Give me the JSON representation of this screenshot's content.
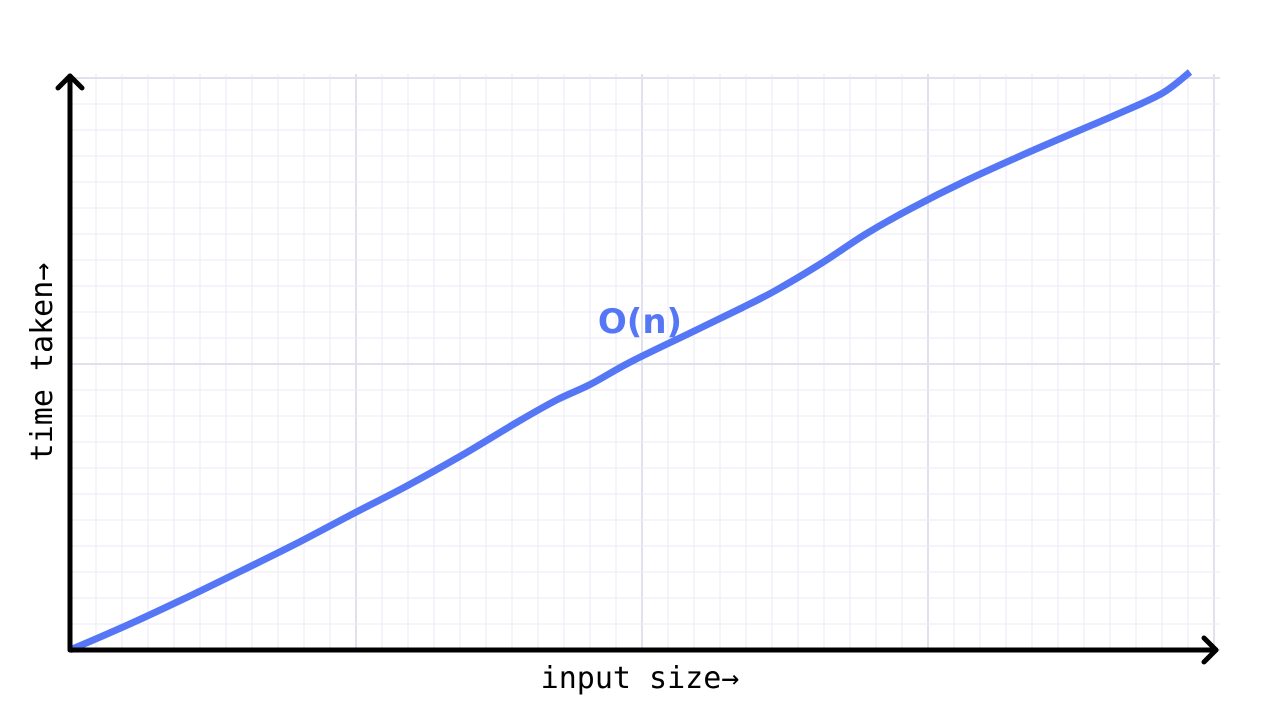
{
  "chart_data": {
    "type": "line",
    "title": "",
    "xlabel": "input size→",
    "ylabel": "time taken→",
    "grid": true,
    "xlim": [
      0,
      100
    ],
    "ylim": [
      0,
      100
    ],
    "series": [
      {
        "name": "O(n)",
        "color": "#5577f5",
        "points": [
          [
            0,
            0
          ],
          [
            5,
            4.2
          ],
          [
            10,
            8.7
          ],
          [
            15,
            13.4
          ],
          [
            20,
            18.2
          ],
          [
            25,
            23.3
          ],
          [
            30,
            28.3
          ],
          [
            35,
            33.7
          ],
          [
            40,
            39.5
          ],
          [
            43.5,
            43.3
          ],
          [
            46.5,
            46.0
          ],
          [
            50,
            49.8
          ],
          [
            55,
            54.5
          ],
          [
            60,
            59.2
          ],
          [
            63,
            62.2
          ],
          [
            67,
            66.8
          ],
          [
            71,
            71.9
          ],
          [
            75,
            76.3
          ],
          [
            80,
            81.2
          ],
          [
            85,
            85.6
          ],
          [
            90,
            89.8
          ],
          [
            93.5,
            92.7
          ],
          [
            97.5,
            96.3
          ],
          [
            100,
            100
          ]
        ]
      }
    ],
    "annotation": "O(n)"
  },
  "colors": {
    "grid_minor": "#ededf7",
    "grid_major": "#e0e0ee",
    "axis": "#000000"
  }
}
